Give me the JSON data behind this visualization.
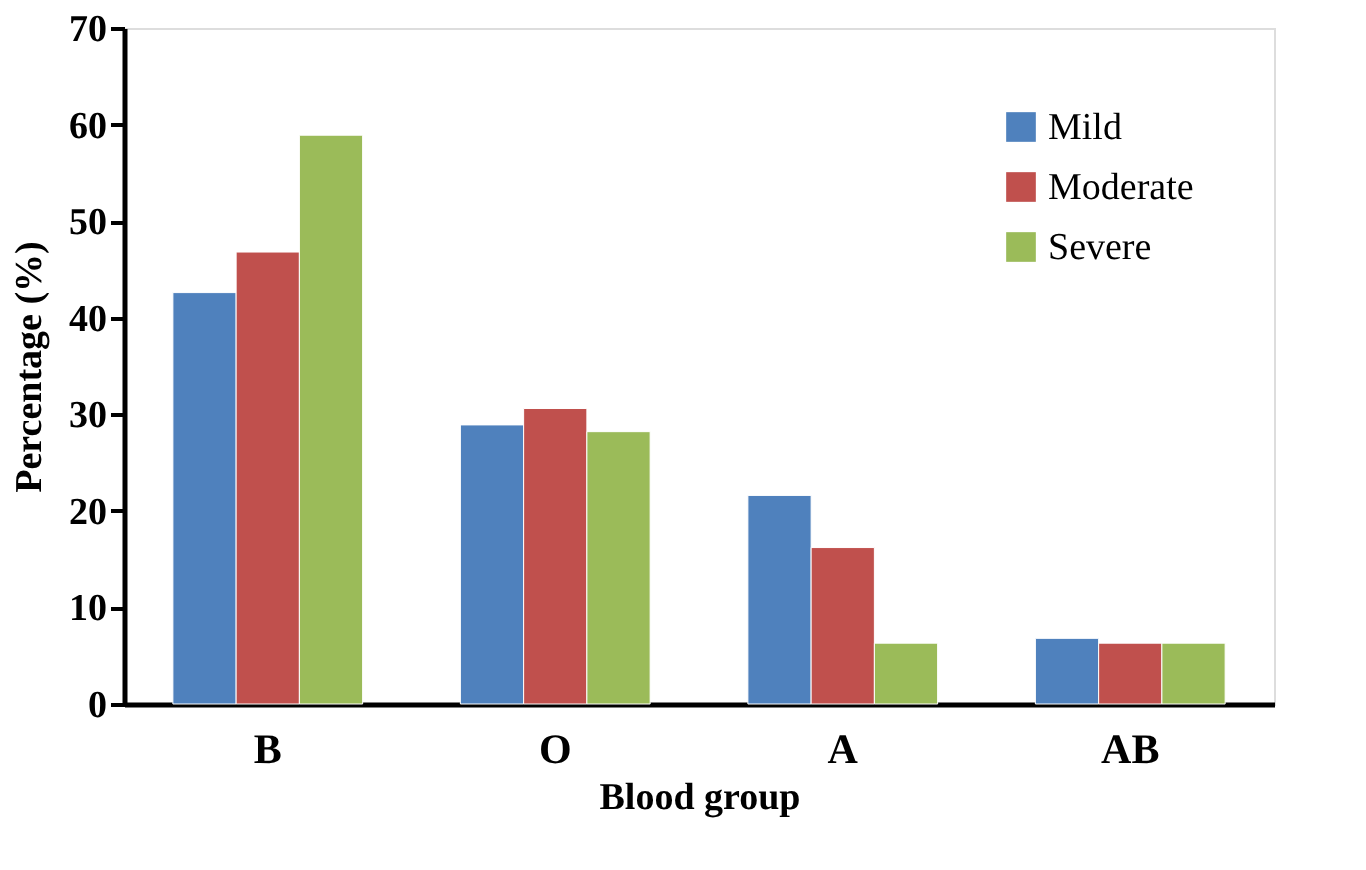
{
  "chart_data": {
    "type": "bar",
    "xlabel": "Blood group",
    "ylabel": "Percentage (%)",
    "categories": [
      "B",
      "O",
      "A",
      "AB"
    ],
    "series": [
      {
        "name": "Mild",
        "color": "#4f81bd",
        "values": [
          42.6,
          28.9,
          21.6,
          6.8
        ]
      },
      {
        "name": "Moderate",
        "color": "#c0504d",
        "values": [
          46.8,
          30.6,
          16.2,
          6.3
        ]
      },
      {
        "name": "Severe",
        "color": "#9bbb59",
        "values": [
          58.9,
          28.2,
          6.3,
          6.3
        ]
      }
    ],
    "ylim": [
      0,
      70
    ],
    "yticks": [
      0,
      10,
      20,
      30,
      40,
      50,
      60,
      70
    ],
    "grid": false,
    "legend": "top right"
  }
}
